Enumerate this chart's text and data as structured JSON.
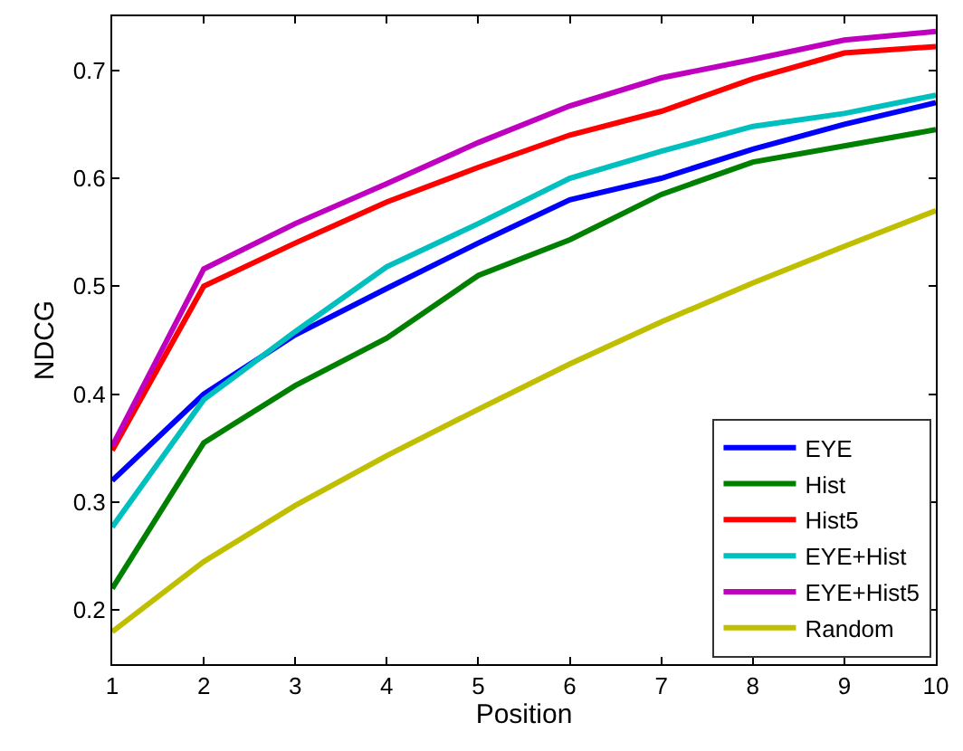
{
  "chart_data": {
    "type": "line",
    "xlabel": "Position",
    "ylabel": "NDCG",
    "x": [
      1,
      2,
      3,
      4,
      5,
      6,
      7,
      8,
      9,
      10
    ],
    "xlim": [
      1,
      10
    ],
    "xticks": [
      1,
      2,
      3,
      4,
      5,
      6,
      7,
      8,
      9,
      10
    ],
    "ylim": [
      0.15,
      0.75
    ],
    "yticks": [
      0.2,
      0.3,
      0.4,
      0.5,
      0.6,
      0.7
    ],
    "legend": "bottom right",
    "line_style": "solid",
    "marker": "none",
    "series": [
      {
        "name": "EYE",
        "color": "#0000ff",
        "values": [
          0.32,
          0.4,
          0.455,
          0.498,
          0.54,
          0.58,
          0.6,
          0.627,
          0.65,
          0.67
        ]
      },
      {
        "name": "Hist",
        "color": "#008000",
        "values": [
          0.22,
          0.355,
          0.408,
          0.452,
          0.51,
          0.543,
          0.585,
          0.615,
          0.63,
          0.645
        ]
      },
      {
        "name": "Hist5",
        "color": "#ff0000",
        "values": [
          0.348,
          0.5,
          0.54,
          0.578,
          0.61,
          0.64,
          0.662,
          0.692,
          0.716,
          0.722
        ]
      },
      {
        "name": "EYE+Hist",
        "color": "#00bfbf",
        "values": [
          0.277,
          0.395,
          0.458,
          0.518,
          0.558,
          0.6,
          0.625,
          0.648,
          0.66,
          0.677
        ]
      },
      {
        "name": "EYE+Hist5",
        "color": "#bf00bf",
        "values": [
          0.352,
          0.516,
          0.558,
          0.595,
          0.633,
          0.667,
          0.693,
          0.71,
          0.728,
          0.736
        ]
      },
      {
        "name": "Random",
        "color": "#bfbf00",
        "values": [
          0.18,
          0.245,
          0.297,
          0.343,
          0.386,
          0.428,
          0.467,
          0.503,
          0.537,
          0.57
        ]
      }
    ]
  }
}
